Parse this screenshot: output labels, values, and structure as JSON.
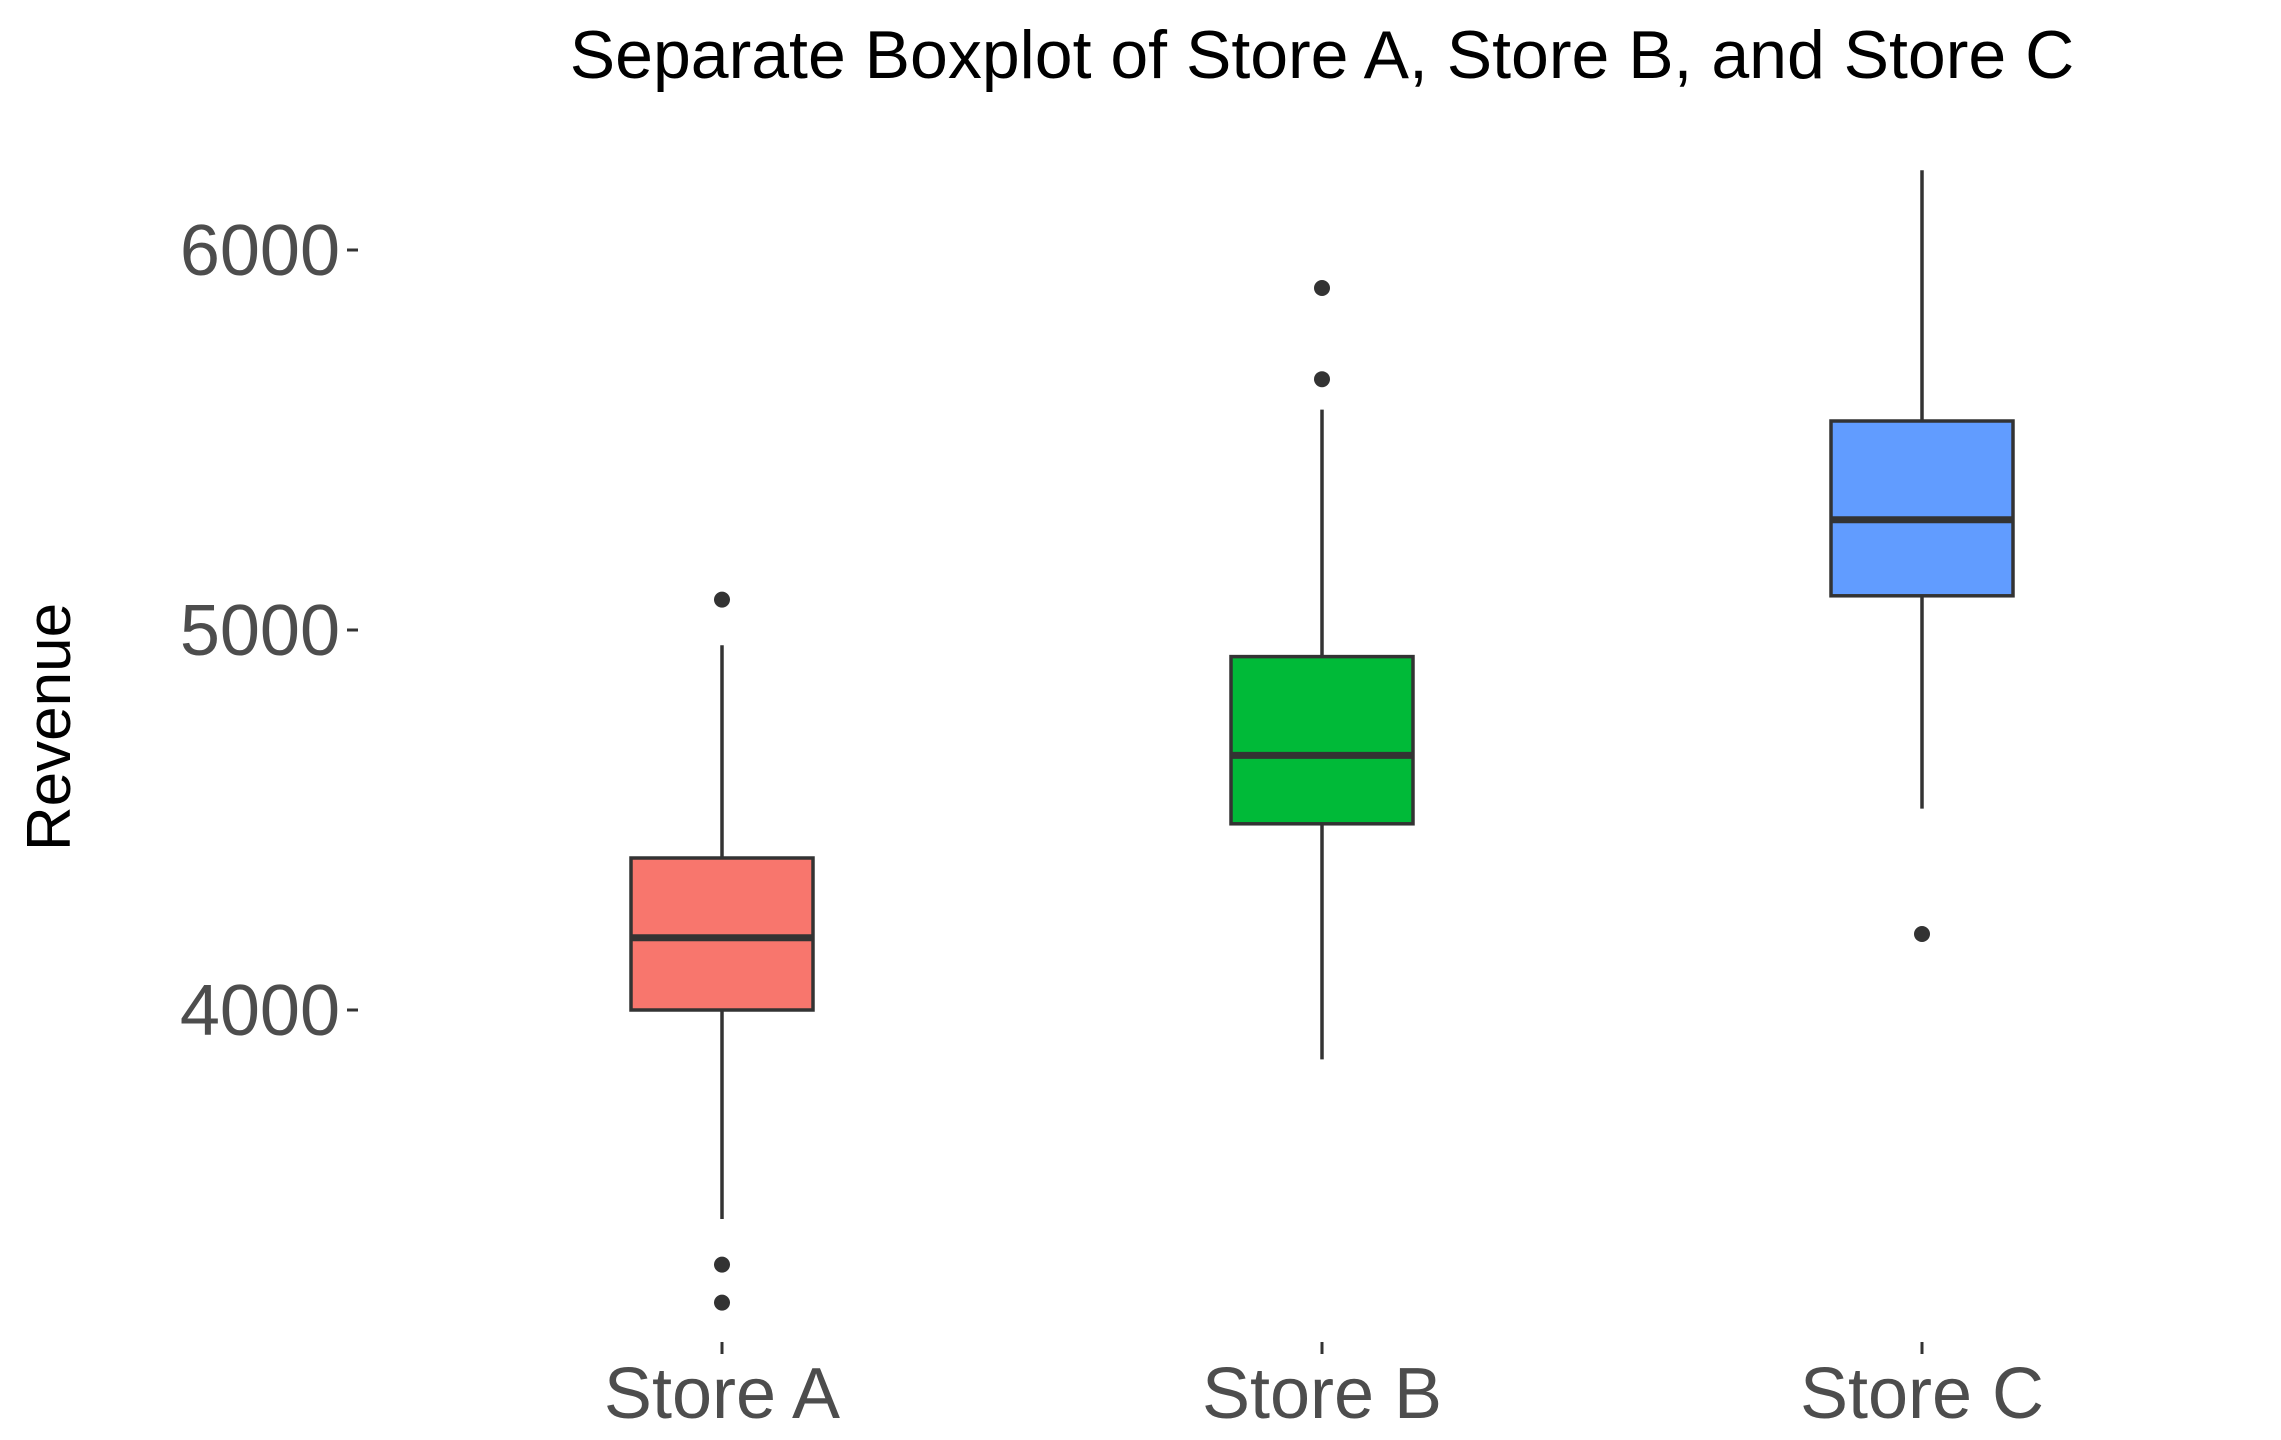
{
  "chart_data": {
    "type": "boxplot",
    "title": "Separate Boxplot of Store A, Store B, and Store C",
    "xlabel": "",
    "ylabel": "Revenue",
    "categories": [
      "Store A",
      "Store B",
      "Store C"
    ],
    "ylim": [
      3120,
      6220
    ],
    "yticks": [
      4000,
      5000,
      6000
    ],
    "ytick_labels": [
      "4000",
      "5000",
      "6000"
    ],
    "grid": false,
    "legend": "none",
    "boxes": [
      {
        "name": "Store A",
        "color": "#F8766D",
        "whisker_low": 3450,
        "q1": 4000,
        "median": 4190,
        "q3": 4400,
        "whisker_high": 4960,
        "outliers": [
          5080,
          3330,
          3230
        ]
      },
      {
        "name": "Store B",
        "color": "#00BA38",
        "whisker_low": 3870,
        "q1": 4490,
        "median": 4670,
        "q3": 4930,
        "whisker_high": 5580,
        "outliers": [
          5900,
          5660
        ]
      },
      {
        "name": "Store C",
        "color": "#619CFF",
        "whisker_low": 4530,
        "q1": 5090,
        "median": 5290,
        "q3": 5550,
        "whisker_high": 6210,
        "outliers": [
          4200
        ]
      }
    ]
  }
}
